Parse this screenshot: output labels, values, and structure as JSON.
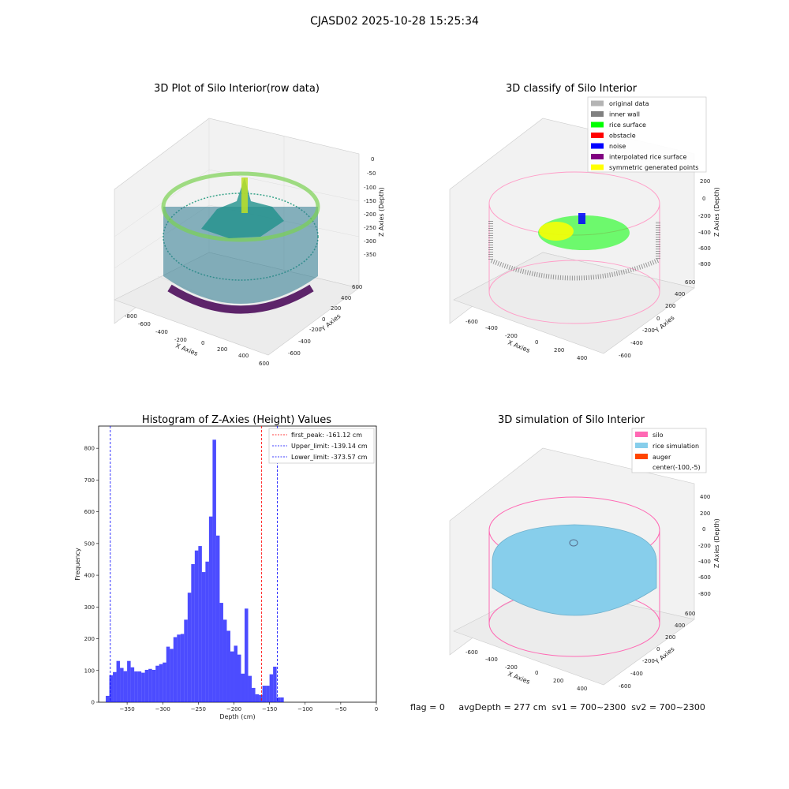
{
  "figure": {
    "suptitle": "CJASD02 2025-10-28 15:25:34",
    "status_line": "flag = 0     avgDepth = 277 cm  sv1 = 700~2300  sv2 = 700~2300"
  },
  "panels": {
    "raw": {
      "title": "3D Plot of Silo Interior(row data)",
      "xlabel": "X Axies",
      "ylabel": "Y Axies",
      "zlabel": "Z Axies (Depth)",
      "x_ticks": [
        "-800",
        "-600",
        "-400",
        "-200",
        "0",
        "200",
        "400",
        "600"
      ],
      "y_ticks": [
        "-600",
        "-400",
        "-200",
        "0",
        "200",
        "400",
        "600"
      ],
      "z_ticks": [
        "0",
        "-50",
        "-100",
        "-150",
        "-200",
        "-250",
        "-300",
        "-350"
      ]
    },
    "classify": {
      "title": "3D classify of Silo Interior",
      "xlabel": "X Axies",
      "ylabel": "Y Axies",
      "zlabel": "Z Axies (Depth)",
      "x_ticks": [
        "-600",
        "-400",
        "-200",
        "0",
        "200",
        "400"
      ],
      "y_ticks": [
        "-600",
        "-400",
        "-200",
        "0",
        "200",
        "400",
        "600"
      ],
      "z_ticks": [
        "200",
        "0",
        "-200",
        "-400",
        "-600",
        "-800"
      ],
      "legend": [
        {
          "label": "original data",
          "color": "#b4b4b4"
        },
        {
          "label": "inner wall",
          "color": "#808080"
        },
        {
          "label": "rice surface",
          "color": "#00ff00"
        },
        {
          "label": "obstacle",
          "color": "#ff0000"
        },
        {
          "label": "noise",
          "color": "#0000ff"
        },
        {
          "label": "interpolated rice surface",
          "color": "#800080"
        },
        {
          "label": "symmetric generated points",
          "color": "#ffff00"
        }
      ]
    },
    "simulation": {
      "title": "3D simulation of Silo Interior",
      "xlabel": "X Axies",
      "ylabel": "Y Axies",
      "zlabel": "Z Axies (Depth)",
      "x_ticks": [
        "-600",
        "-400",
        "-200",
        "0",
        "200",
        "400"
      ],
      "y_ticks": [
        "-600",
        "-400",
        "-200",
        "0",
        "200",
        "400",
        "600"
      ],
      "z_ticks": [
        "400",
        "200",
        "0",
        "-200",
        "-400",
        "-600",
        "-800"
      ],
      "legend": [
        {
          "label": "silo",
          "color": "#ff69b4"
        },
        {
          "label": "rice simulation",
          "color": "#87ceeb"
        },
        {
          "label": "auger",
          "color": "#ff4500"
        },
        {
          "label": "center(-100,-5)",
          "color": ""
        }
      ]
    }
  },
  "chart_data": [
    {
      "type": "histogram",
      "title": "Histogram of Z-Axies (Height) Values",
      "xlabel": "Depth (cm)",
      "ylabel": "Frequency",
      "xlim": [
        -390,
        0
      ],
      "ylim": [
        0,
        870
      ],
      "x_ticks": [
        -350,
        -300,
        -250,
        -200,
        -150,
        -100,
        -50,
        0
      ],
      "y_ticks": [
        0,
        100,
        200,
        300,
        400,
        500,
        600,
        700,
        800
      ],
      "bar_color": "#0000ff",
      "bins": [
        {
          "x0": -380,
          "x1": -375,
          "count": 20
        },
        {
          "x0": -375,
          "x1": -370,
          "count": 85
        },
        {
          "x0": -370,
          "x1": -365,
          "count": 95
        },
        {
          "x0": -365,
          "x1": -360,
          "count": 130
        },
        {
          "x0": -360,
          "x1": -355,
          "count": 108
        },
        {
          "x0": -355,
          "x1": -350,
          "count": 98
        },
        {
          "x0": -350,
          "x1": -345,
          "count": 130
        },
        {
          "x0": -345,
          "x1": -340,
          "count": 110
        },
        {
          "x0": -340,
          "x1": -335,
          "count": 97
        },
        {
          "x0": -335,
          "x1": -330,
          "count": 97
        },
        {
          "x0": -330,
          "x1": -325,
          "count": 93
        },
        {
          "x0": -325,
          "x1": -320,
          "count": 102
        },
        {
          "x0": -320,
          "x1": -315,
          "count": 105
        },
        {
          "x0": -315,
          "x1": -310,
          "count": 102
        },
        {
          "x0": -310,
          "x1": -305,
          "count": 115
        },
        {
          "x0": -305,
          "x1": -300,
          "count": 120
        },
        {
          "x0": -300,
          "x1": -295,
          "count": 125
        },
        {
          "x0": -295,
          "x1": -290,
          "count": 175
        },
        {
          "x0": -290,
          "x1": -285,
          "count": 168
        },
        {
          "x0": -285,
          "x1": -280,
          "count": 205
        },
        {
          "x0": -280,
          "x1": -275,
          "count": 213
        },
        {
          "x0": -275,
          "x1": -270,
          "count": 215
        },
        {
          "x0": -270,
          "x1": -265,
          "count": 260
        },
        {
          "x0": -265,
          "x1": -260,
          "count": 345
        },
        {
          "x0": -260,
          "x1": -255,
          "count": 435
        },
        {
          "x0": -255,
          "x1": -250,
          "count": 478
        },
        {
          "x0": -250,
          "x1": -245,
          "count": 492
        },
        {
          "x0": -245,
          "x1": -240,
          "count": 410
        },
        {
          "x0": -240,
          "x1": -235,
          "count": 443
        },
        {
          "x0": -235,
          "x1": -230,
          "count": 585
        },
        {
          "x0": -230,
          "x1": -225,
          "count": 827
        },
        {
          "x0": -225,
          "x1": -220,
          "count": 525
        },
        {
          "x0": -220,
          "x1": -215,
          "count": 313
        },
        {
          "x0": -215,
          "x1": -210,
          "count": 260
        },
        {
          "x0": -210,
          "x1": -205,
          "count": 225
        },
        {
          "x0": -205,
          "x1": -200,
          "count": 160
        },
        {
          "x0": -200,
          "x1": -195,
          "count": 178
        },
        {
          "x0": -195,
          "x1": -190,
          "count": 150
        },
        {
          "x0": -190,
          "x1": -185,
          "count": 90
        },
        {
          "x0": -185,
          "x1": -180,
          "count": 295
        },
        {
          "x0": -180,
          "x1": -175,
          "count": 83
        },
        {
          "x0": -175,
          "x1": -170,
          "count": 45
        },
        {
          "x0": -170,
          "x1": -165,
          "count": 25
        },
        {
          "x0": -165,
          "x1": -160,
          "count": 23
        },
        {
          "x0": -160,
          "x1": -155,
          "count": 52
        },
        {
          "x0": -155,
          "x1": -150,
          "count": 52
        },
        {
          "x0": -150,
          "x1": -145,
          "count": 88
        },
        {
          "x0": -145,
          "x1": -140,
          "count": 112
        },
        {
          "x0": -140,
          "x1": -135,
          "count": 15
        },
        {
          "x0": -135,
          "x1": -130,
          "count": 15
        }
      ],
      "vlines": [
        {
          "label": "first_peak: -161.12 cm",
          "value": -161.12,
          "color": "#ff0000"
        },
        {
          "label": "Upper_limit: -139.14 cm",
          "value": -139.14,
          "color": "#0000ff"
        },
        {
          "label": "Lower_limit: -373.57 cm",
          "value": -373.57,
          "color": "#0000ff"
        }
      ],
      "legend_position": "top-right"
    }
  ]
}
